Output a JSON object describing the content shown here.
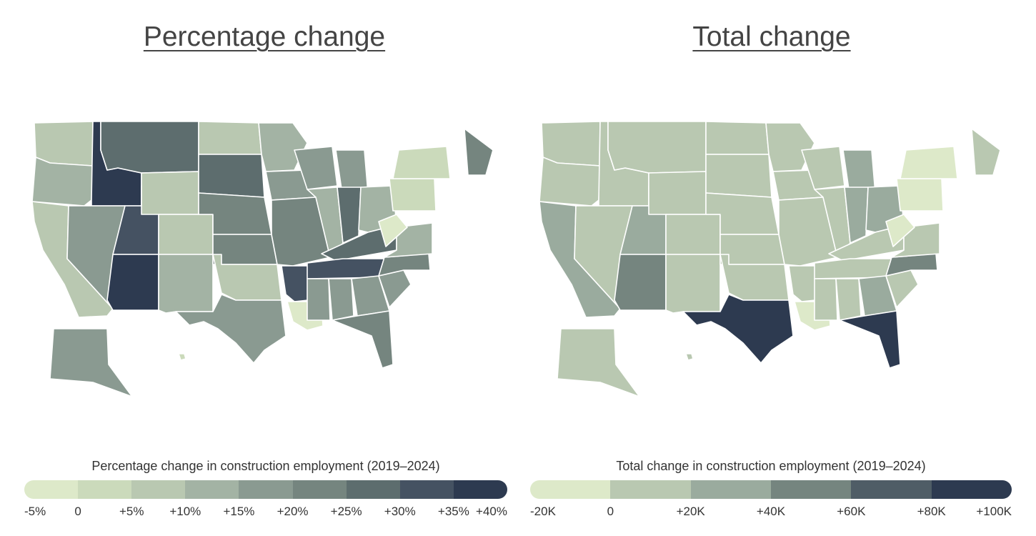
{
  "panels": [
    {
      "title": "Percentage change",
      "legend": {
        "title": "Percentage change in construction employment (2019–2024)",
        "ticks": [
          "-5%",
          "0",
          "+5%",
          "+10%",
          "+15%",
          "+20%",
          "+25%",
          "+30%",
          "+35%",
          "+40%"
        ],
        "colors": [
          "#dde9c9",
          "#cbdabb",
          "#b9c8b1",
          "#a3b3a4",
          "#8a9a91",
          "#75857f",
          "#5d6d6e",
          "#455262",
          "#2d3a50"
        ]
      },
      "states": {
        "WA": "+5%",
        "OR": "+10%",
        "CA": "+5%",
        "ID": "+40%",
        "NV": "+15%",
        "UT": "+30%",
        "AZ": "+35%",
        "MT": "+25%",
        "WY": "+5%",
        "CO": "+5%",
        "NM": "+10%",
        "ND": "+5%",
        "SD": "+25%",
        "NE": "+20%",
        "KS": "+20%",
        "OK": "+5%",
        "TX": "+15%",
        "MN": "+10%",
        "IA": "+15%",
        "MO": "+20%",
        "AR": "+30%",
        "LA": "-5%",
        "WI": "+15%",
        "IL": "+10%",
        "MI": "+15%",
        "IN": "+25%",
        "OH": "+10%",
        "KY": "+25%",
        "TN": "+30%",
        "MS": "+15%",
        "AL": "+15%",
        "GA": "+15%",
        "FL": "+20%",
        "SC": "+15%",
        "NC": "+20%",
        "VA": "+10%",
        "WV": "-5%",
        "PA": "0",
        "NY": "0",
        "ME": "+20%",
        "AK": "+15%",
        "HI": "0"
      }
    },
    {
      "title": "Total change",
      "legend": {
        "title": "Total change in construction employment (2019–2024)",
        "ticks": [
          "-20K",
          "0",
          "+20K",
          "+40K",
          "+60K",
          "+80K",
          "+100K"
        ],
        "colors": [
          "#dde9c9",
          "#b9c8b1",
          "#9aab9e",
          "#75857f",
          "#4f5d66",
          "#2d3a50"
        ]
      },
      "states": {
        "WA": "0 to +20K",
        "OR": "0 to +20K",
        "CA": "+20K to +40K",
        "ID": "0 to +20K",
        "NV": "0 to +20K",
        "UT": "+20K to +40K",
        "AZ": "+40K to +60K",
        "MT": "0 to +20K",
        "WY": "0 to +20K",
        "CO": "0 to +20K",
        "NM": "0 to +20K",
        "ND": "0 to +20K",
        "SD": "0 to +20K",
        "NE": "0 to +20K",
        "KS": "0 to +20K",
        "OK": "0 to +20K",
        "TX": "+80K to +100K",
        "MN": "0 to +20K",
        "IA": "0 to +20K",
        "MO": "0 to +20K",
        "AR": "0 to +20K",
        "LA": "-20K to 0",
        "WI": "0 to +20K",
        "IL": "0 to +20K",
        "MI": "+20K to +40K",
        "IN": "+20K to +40K",
        "OH": "+20K to +40K",
        "KY": "0 to +20K",
        "TN": "0 to +20K",
        "MS": "0 to +20K",
        "AL": "0 to +20K",
        "GA": "+20K to +40K",
        "FL": "+80K to +100K",
        "SC": "0 to +20K",
        "NC": "+40K to +60K",
        "VA": "0 to +20K",
        "WV": "-20K to 0",
        "PA": "-20K to 0",
        "NY": "-20K to 0",
        "ME": "0 to +20K",
        "AK": "0 to +20K",
        "HI": "0 to +20K"
      }
    }
  ]
}
